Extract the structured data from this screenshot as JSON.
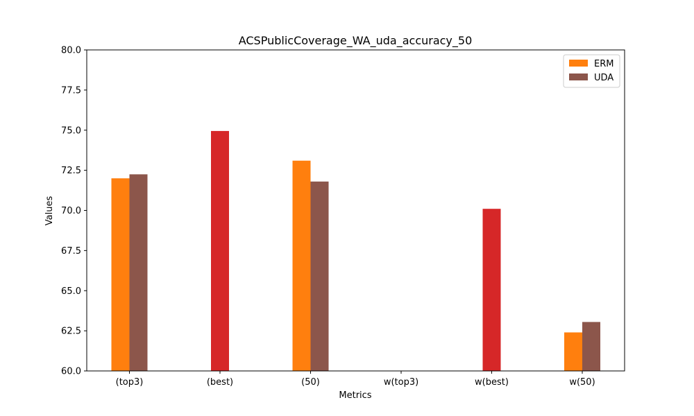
{
  "chart_data": {
    "type": "bar",
    "title": "ACSPublicCoverage_WA_uda_accuracy_50",
    "xlabel": "Metrics",
    "ylabel": "Values",
    "ylim": [
      60,
      80
    ],
    "yticks": [
      "60.0",
      "62.5",
      "65.0",
      "67.5",
      "70.0",
      "72.5",
      "75.0",
      "77.5",
      "80.0"
    ],
    "categories": [
      "(top3)",
      "(best)",
      "(50)",
      "w(top3)",
      "w(best)",
      "w(50)"
    ],
    "series": [
      {
        "name": "ERM",
        "color": "#ff7f0e",
        "values": [
          72.0,
          null,
          73.1,
          null,
          null,
          62.4
        ]
      },
      {
        "name": "UDA",
        "color": "#8c564b",
        "values": [
          72.25,
          null,
          71.8,
          null,
          null,
          63.05
        ]
      },
      {
        "values": [
          null,
          74.95,
          null,
          null,
          70.1,
          null
        ],
        "color": "#d62728"
      }
    ],
    "legend": {
      "position": "top-right",
      "entries": [
        "ERM",
        "UDA"
      ]
    },
    "grid": false
  }
}
